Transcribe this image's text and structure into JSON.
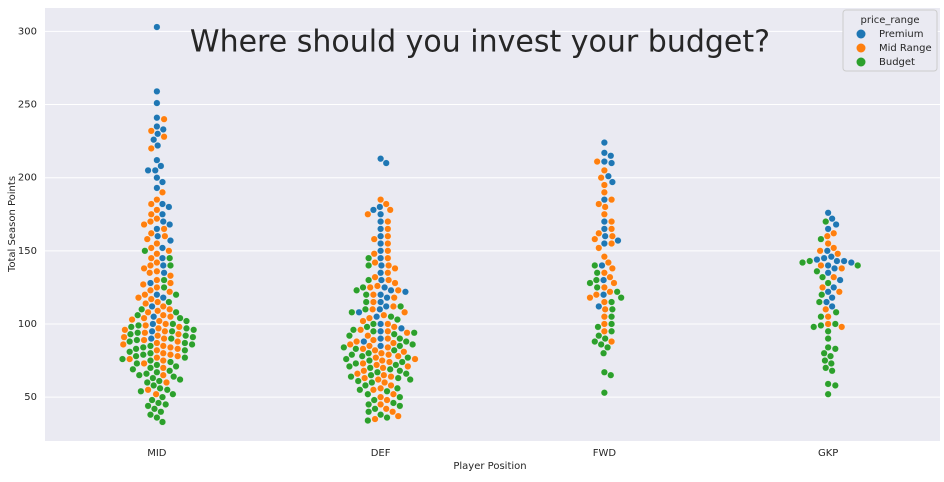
{
  "chart_data": {
    "type": "swarm",
    "title": "Where should you invest your budget?",
    "x_label": "Player Position",
    "y_label": "Total Season Points",
    "categories": [
      "MID",
      "DEF",
      "FWD",
      "GKP"
    ],
    "legend_title": "price_range",
    "legend_position": "upper right",
    "grid": true,
    "ylim": [
      20,
      316
    ],
    "yticks": [
      50,
      100,
      150,
      200,
      250,
      300
    ],
    "series": [
      {
        "name": "Premium",
        "color": "#1f77b4",
        "values": [
          [
            303,
            259,
            251,
            241,
            235,
            233,
            230,
            226,
            222,
            212,
            208,
            205,
            205,
            200,
            197,
            193,
            182,
            180,
            175,
            170,
            168,
            165,
            160,
            157,
            152,
            145,
            140,
            135,
            128,
            120,
            118,
            112,
            105,
            100,
            95,
            90
          ],
          [
            213,
            210,
            180,
            178,
            175,
            170,
            165,
            160,
            155,
            150,
            145,
            140,
            135,
            130,
            125,
            123,
            122,
            120,
            118,
            115,
            112,
            110,
            108,
            105,
            100,
            97,
            95,
            90,
            88,
            85
          ],
          [
            224,
            217,
            215,
            211,
            210,
            201,
            197,
            185,
            170,
            165,
            160,
            157,
            155,
            140,
            130,
            120,
            112
          ],
          [
            176,
            172,
            168,
            165,
            150,
            146,
            145,
            144,
            143,
            143,
            142,
            140,
            138,
            135,
            130,
            125,
            122,
            118,
            115,
            112
          ]
        ]
      },
      {
        "name": "Mid Range",
        "color": "#ff7f0e",
        "values": [
          [
            240,
            232,
            228,
            220,
            190,
            185,
            182,
            178,
            175,
            172,
            170,
            168,
            165,
            162,
            160,
            158,
            155,
            152,
            150,
            148,
            145,
            142,
            140,
            138,
            136,
            135,
            133,
            130,
            128,
            127,
            125,
            123,
            122,
            120,
            118,
            117,
            115,
            114,
            112,
            110,
            109,
            108,
            106,
            105,
            104,
            103,
            102,
            100,
            99,
            98,
            97,
            96,
            95,
            94,
            93,
            92,
            91,
            90,
            89,
            88,
            87,
            86,
            85,
            84,
            83,
            82,
            80,
            79,
            78,
            77,
            76,
            75,
            73,
            70,
            65,
            60,
            55,
            52
          ],
          [
            185,
            182,
            178,
            175,
            170,
            165,
            160,
            158,
            155,
            150,
            148,
            145,
            142,
            140,
            138,
            135,
            132,
            130,
            128,
            126,
            125,
            123,
            120,
            118,
            115,
            112,
            110,
            108,
            106,
            104,
            102,
            100,
            98,
            96,
            95,
            94,
            92,
            90,
            89,
            88,
            87,
            86,
            85,
            84,
            83,
            82,
            81,
            80,
            79,
            78,
            77,
            76,
            75,
            74,
            73,
            72,
            71,
            70,
            68,
            66,
            65,
            64,
            63,
            62,
            60,
            58,
            56,
            55,
            52,
            50,
            48,
            45,
            42,
            40,
            37,
            35
          ],
          [
            211,
            205,
            200,
            195,
            190,
            185,
            182,
            180,
            175,
            170,
            165,
            162,
            160,
            158,
            155,
            152,
            146,
            142,
            138,
            135,
            132,
            128,
            125,
            122,
            120,
            118,
            115,
            110,
            105,
            100,
            95,
            88
          ],
          [
            162,
            160,
            155,
            152,
            150,
            148,
            140,
            138,
            132,
            125,
            122,
            110,
            105,
            100,
            98
          ]
        ]
      },
      {
        "name": "Budget",
        "color": "#2ca02c",
        "values": [
          [
            150,
            145,
            140,
            130,
            125,
            120,
            115,
            110,
            108,
            106,
            104,
            102,
            100,
            99,
            98,
            97,
            96,
            95,
            94,
            93,
            92,
            91,
            90,
            89,
            88,
            87,
            86,
            85,
            84,
            83,
            82,
            81,
            80,
            79,
            78,
            77,
            76,
            75,
            74,
            73,
            72,
            71,
            70,
            69,
            68,
            67,
            66,
            65,
            64,
            63,
            62,
            61,
            60,
            58,
            56,
            55,
            54,
            52,
            50,
            48,
            46,
            45,
            44,
            42,
            40,
            38,
            36,
            33
          ],
          [
            145,
            140,
            130,
            125,
            123,
            120,
            115,
            112,
            110,
            108,
            105,
            103,
            100,
            98,
            96,
            95,
            94,
            93,
            92,
            90,
            88,
            86,
            85,
            84,
            83,
            82,
            80,
            79,
            78,
            77,
            76,
            75,
            74,
            73,
            72,
            71,
            70,
            69,
            68,
            67,
            66,
            65,
            64,
            63,
            62,
            61,
            60,
            58,
            56,
            55,
            54,
            52,
            50,
            48,
            46,
            45,
            44,
            42,
            40,
            38,
            36,
            34
          ],
          [
            140,
            135,
            130,
            128,
            125,
            122,
            118,
            115,
            110,
            105,
            100,
            98,
            95,
            92,
            90,
            88,
            86,
            84,
            80,
            67,
            65,
            53
          ],
          [
            170,
            158,
            143,
            142,
            140,
            136,
            132,
            128,
            120,
            115,
            108,
            105,
            100,
            99,
            98,
            95,
            90,
            84,
            83,
            80,
            78,
            75,
            73,
            70,
            68,
            59,
            58,
            52
          ]
        ]
      }
    ]
  }
}
